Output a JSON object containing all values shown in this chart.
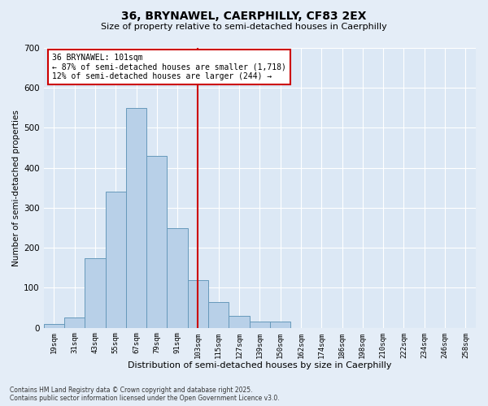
{
  "title_line1": "36, BRYNAWEL, CAERPHILLY, CF83 2EX",
  "title_line2": "Size of property relative to semi-detached houses in Caerphilly",
  "xlabel": "Distribution of semi-detached houses by size in Caerphilly",
  "ylabel": "Number of semi-detached properties",
  "bar_labels": [
    "19sqm",
    "31sqm",
    "43sqm",
    "55sqm",
    "67sqm",
    "79sqm",
    "91sqm",
    "103sqm",
    "115sqm",
    "127sqm",
    "139sqm",
    "150sqm",
    "162sqm",
    "174sqm",
    "186sqm",
    "198sqm",
    "210sqm",
    "222sqm",
    "234sqm",
    "246sqm",
    "258sqm"
  ],
  "bar_values": [
    10,
    25,
    175,
    340,
    550,
    430,
    250,
    120,
    65,
    30,
    15,
    15,
    0,
    0,
    0,
    0,
    0,
    0,
    0,
    0,
    0
  ],
  "bar_color": "#b8d0e8",
  "bar_edge_color": "#6699bb",
  "vline_idx": 7,
  "vline_color": "#cc0000",
  "annotation_text": "36 BRYNAWEL: 101sqm\n← 87% of semi-detached houses are smaller (1,718)\n12% of semi-detached houses are larger (244) →",
  "annotation_box_color": "#cc0000",
  "ylim": [
    0,
    700
  ],
  "yticks": [
    0,
    100,
    200,
    300,
    400,
    500,
    600,
    700
  ],
  "footnote": "Contains HM Land Registry data © Crown copyright and database right 2025.\nContains public sector information licensed under the Open Government Licence v3.0.",
  "bg_color": "#dce8f5",
  "fig_bg_color": "#e4edf7",
  "grid_color": "#ffffff"
}
